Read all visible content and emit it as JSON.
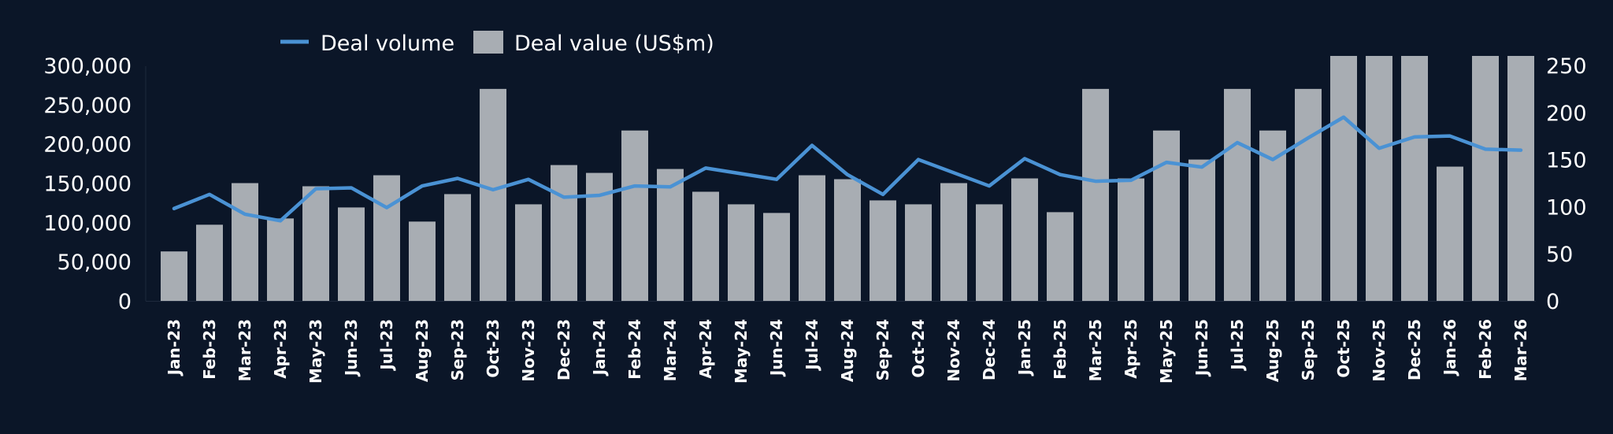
{
  "chart_data": {
    "type": "bar+line",
    "title": "",
    "legend": {
      "placement": "top",
      "items": [
        {
          "label": "Deal volume",
          "kind": "line"
        },
        {
          "label": "Deal value (US$m)",
          "kind": "bar"
        }
      ]
    },
    "categories": [
      "Jan-23",
      "Feb-23",
      "Mar-23",
      "Apr-23",
      "May-23",
      "Jun-23",
      "Jul-23",
      "Aug-23",
      "Sep-23",
      "Oct-23",
      "Nov-23",
      "Dec-23",
      "Jan-24",
      "Feb-24",
      "Mar-24",
      "Apr-24",
      "May-24",
      "Jun-24",
      "Jul-24",
      "Aug-24",
      "Sep-24",
      "Oct-24",
      "Nov-24",
      "Dec-24",
      "Jan-25",
      "Feb-25",
      "Mar-25",
      "Apr-25",
      "May-25",
      "Jun-25",
      "Jul-25",
      "Aug-25",
      "Sep-25",
      "Oct-25",
      "Nov-25",
      "Dec-25",
      "Jan-26",
      "Feb-26",
      "Mar-26"
    ],
    "series": [
      {
        "name": "Deal value (US$m)",
        "type": "bar",
        "axis": "left",
        "color": "#a8adb3",
        "values": [
          63000,
          97000,
          150000,
          105000,
          146000,
          119000,
          160000,
          101000,
          136000,
          270000,
          123000,
          173000,
          163000,
          217000,
          168000,
          139000,
          123000,
          112000,
          160000,
          155000,
          128000,
          123000,
          150000,
          123000,
          156000,
          113000,
          270000,
          156000,
          217000,
          180000,
          270000,
          217000,
          270000,
          312000,
          312000,
          312000,
          171000,
          312000,
          312000
        ]
      },
      {
        "name": "Deal volume",
        "type": "line",
        "axis": "right",
        "color": "#4a92d4",
        "values": [
          98,
          113,
          92,
          85,
          119,
          120,
          99,
          122,
          130,
          118,
          129,
          110,
          112,
          122,
          121,
          141,
          135,
          129,
          165,
          134,
          113,
          150,
          136,
          122,
          151,
          134,
          127,
          128,
          147,
          142,
          168,
          150,
          173,
          195,
          162,
          174,
          175,
          161,
          160
        ]
      }
    ],
    "left_axis": {
      "ylim": [
        0,
        312000
      ],
      "ticks": [
        0,
        50000,
        100000,
        150000,
        200000,
        250000,
        300000
      ],
      "tick_labels": [
        "0",
        "50,000",
        "100,000",
        "150,000",
        "200,000",
        "250,000",
        "300,000"
      ]
    },
    "right_axis": {
      "ylim": [
        0,
        260
      ],
      "ticks": [
        0,
        50,
        100,
        150,
        200,
        250
      ],
      "tick_labels": [
        "0",
        "50",
        "100",
        "150",
        "200",
        "250"
      ]
    },
    "grid": false,
    "background": "#0b1628"
  }
}
